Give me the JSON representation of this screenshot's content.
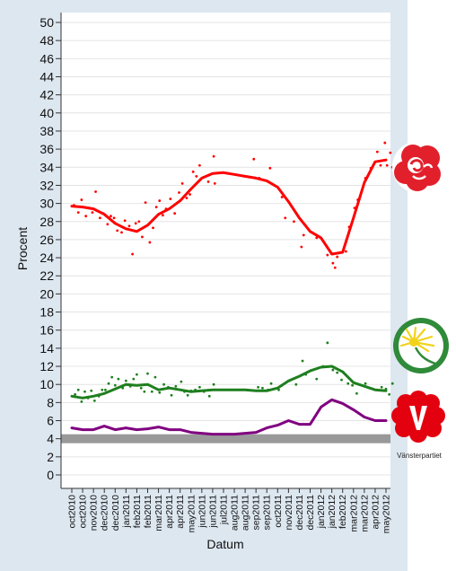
{
  "chart_data": {
    "type": "line",
    "xlabel": "Datum",
    "ylabel": "Procent",
    "ylim": [
      0,
      51
    ],
    "yticks": [
      0,
      2,
      4,
      6,
      8,
      10,
      12,
      14,
      16,
      18,
      20,
      22,
      24,
      26,
      28,
      30,
      32,
      34,
      36,
      38,
      40,
      42,
      44,
      46,
      48,
      50
    ],
    "x_categories": [
      "oct2010",
      "oct2010",
      "nov2010",
      "dec2010",
      "dec2010",
      "jan2011",
      "feb2011",
      "feb2011",
      "mar2011",
      "apr2011",
      "apr2011",
      "may2011",
      "jun2011",
      "jun2011",
      "jul2011",
      "aug2011",
      "aug2011",
      "sep2011",
      "sep2011",
      "oct2011",
      "nov2011",
      "dec2011",
      "dec2011",
      "jan2012",
      "jan2012",
      "feb2012",
      "mar2012",
      "mar2012",
      "apr2012",
      "may2012"
    ],
    "threshold": {
      "value": 4
    },
    "grid": true,
    "background": "light-blue",
    "series": [
      {
        "color": "#ff0000",
        "smooth": [
          [
            0,
            29.7
          ],
          [
            1,
            29.6
          ],
          [
            2,
            29.4
          ],
          [
            3,
            28.8
          ],
          [
            4,
            27.8
          ],
          [
            5,
            27.2
          ],
          [
            6,
            26.9
          ],
          [
            7,
            27.6
          ],
          [
            8,
            28.8
          ],
          [
            9,
            29.4
          ],
          [
            10,
            30.3
          ],
          [
            11,
            31.6
          ],
          [
            12,
            32.8
          ],
          [
            13,
            33.3
          ],
          [
            14,
            33.4
          ],
          [
            15,
            33.2
          ],
          [
            16,
            33.0
          ],
          [
            17,
            32.8
          ],
          [
            18,
            32.5
          ],
          [
            19,
            31.8
          ],
          [
            20,
            30.2
          ],
          [
            21,
            28.4
          ],
          [
            22,
            26.9
          ],
          [
            23,
            26.2
          ],
          [
            24,
            24.4
          ],
          [
            25,
            24.6
          ],
          [
            26,
            28.4
          ],
          [
            27,
            32.3
          ],
          [
            28,
            34.6
          ],
          [
            29,
            34.8
          ]
        ],
        "points": [
          [
            0.2,
            29.8
          ],
          [
            0.6,
            29.0
          ],
          [
            0.9,
            30.4
          ],
          [
            1.3,
            28.6
          ],
          [
            1.6,
            29.5
          ],
          [
            1.9,
            29.0
          ],
          [
            2.2,
            31.3
          ],
          [
            2.6,
            28.4
          ],
          [
            2.9,
            28.9
          ],
          [
            3.3,
            27.7
          ],
          [
            3.6,
            28.6
          ],
          [
            3.9,
            28.4
          ],
          [
            4.2,
            27.0
          ],
          [
            4.6,
            26.8
          ],
          [
            4.9,
            28.1
          ],
          [
            5.3,
            27.5
          ],
          [
            5.6,
            24.4
          ],
          [
            5.9,
            27.8
          ],
          [
            6.2,
            28.0
          ],
          [
            6.5,
            26.3
          ],
          [
            6.8,
            30.1
          ],
          [
            7.2,
            25.7
          ],
          [
            7.5,
            27.3
          ],
          [
            7.8,
            29.6
          ],
          [
            8.1,
            30.3
          ],
          [
            8.4,
            28.7
          ],
          [
            8.7,
            29.4
          ],
          [
            9.1,
            30.5
          ],
          [
            9.5,
            28.9
          ],
          [
            9.9,
            31.2
          ],
          [
            10.2,
            32.2
          ],
          [
            10.6,
            30.6
          ],
          [
            10.9,
            31.0
          ],
          [
            11.2,
            33.5
          ],
          [
            11.5,
            33.0
          ],
          [
            11.8,
            34.2
          ],
          [
            12.6,
            32.4
          ],
          [
            13.1,
            35.2
          ],
          [
            13.2,
            32.2
          ],
          [
            16.8,
            34.9
          ],
          [
            17.3,
            32.8
          ],
          [
            18.3,
            33.9
          ],
          [
            18.7,
            32.0
          ],
          [
            19.4,
            30.7
          ],
          [
            19.7,
            28.4
          ],
          [
            20.5,
            28.0
          ],
          [
            21.2,
            25.2
          ],
          [
            21.4,
            26.5
          ],
          [
            22.6,
            26.2
          ],
          [
            23.6,
            24.3
          ],
          [
            24.1,
            23.4
          ],
          [
            24.3,
            22.9
          ],
          [
            24.5,
            24.1
          ],
          [
            25.3,
            24.7
          ],
          [
            25.6,
            27.4
          ],
          [
            26.1,
            29.5
          ],
          [
            26.4,
            30.4
          ],
          [
            27.1,
            32.8
          ],
          [
            27.6,
            33.9
          ],
          [
            28.2,
            35.7
          ],
          [
            28.5,
            34.2
          ],
          [
            28.9,
            36.7
          ],
          [
            29.1,
            34.2
          ],
          [
            29.4,
            35.6
          ],
          [
            29.6,
            34.0
          ]
        ]
      },
      {
        "color": "#1e7f1e",
        "smooth": [
          [
            0,
            8.7
          ],
          [
            1,
            8.5
          ],
          [
            2,
            8.7
          ],
          [
            3,
            9.0
          ],
          [
            4,
            9.5
          ],
          [
            5,
            10.0
          ],
          [
            6,
            9.9
          ],
          [
            7,
            10.0
          ],
          [
            8,
            9.4
          ],
          [
            9,
            9.6
          ],
          [
            10,
            9.4
          ],
          [
            11,
            9.2
          ],
          [
            12,
            9.3
          ],
          [
            13,
            9.4
          ],
          [
            14,
            9.4
          ],
          [
            15,
            9.4
          ],
          [
            16,
            9.4
          ],
          [
            17,
            9.3
          ],
          [
            18,
            9.3
          ],
          [
            19,
            9.6
          ],
          [
            20,
            10.4
          ],
          [
            21,
            10.9
          ],
          [
            22,
            11.5
          ],
          [
            23,
            11.9
          ],
          [
            24,
            12.0
          ],
          [
            25,
            11.4
          ],
          [
            26,
            10.2
          ],
          [
            27,
            9.8
          ],
          [
            28,
            9.4
          ],
          [
            29,
            9.3
          ]
        ],
        "points": [
          [
            0.3,
            8.9
          ],
          [
            0.6,
            9.4
          ],
          [
            0.9,
            8.1
          ],
          [
            1.2,
            9.2
          ],
          [
            1.5,
            8.5
          ],
          [
            1.8,
            9.3
          ],
          [
            2.1,
            8.2
          ],
          [
            2.5,
            8.7
          ],
          [
            2.8,
            9.4
          ],
          [
            3.1,
            9.4
          ],
          [
            3.4,
            10.1
          ],
          [
            3.7,
            10.8
          ],
          [
            4.0,
            9.9
          ],
          [
            4.3,
            10.6
          ],
          [
            4.7,
            9.6
          ],
          [
            5.0,
            10.4
          ],
          [
            5.4,
            9.8
          ],
          [
            5.7,
            10.6
          ],
          [
            6.0,
            11.1
          ],
          [
            6.4,
            9.6
          ],
          [
            6.7,
            9.2
          ],
          [
            7.0,
            11.2
          ],
          [
            7.4,
            9.2
          ],
          [
            7.7,
            10.8
          ],
          [
            8.1,
            9.1
          ],
          [
            8.5,
            10.0
          ],
          [
            8.9,
            9.7
          ],
          [
            9.2,
            8.8
          ],
          [
            9.6,
            9.8
          ],
          [
            10.1,
            10.3
          ],
          [
            10.4,
            9.2
          ],
          [
            10.7,
            8.8
          ],
          [
            11.0,
            9.3
          ],
          [
            11.4,
            9.4
          ],
          [
            11.8,
            9.7
          ],
          [
            12.2,
            9.2
          ],
          [
            12.7,
            8.7
          ],
          [
            13.1,
            10.0
          ],
          [
            17.2,
            9.7
          ],
          [
            17.6,
            9.6
          ],
          [
            18.1,
            9.4
          ],
          [
            18.4,
            10.1
          ],
          [
            19.1,
            9.4
          ],
          [
            19.4,
            9.9
          ],
          [
            20.1,
            10.4
          ],
          [
            20.7,
            10.0
          ],
          [
            21.3,
            12.6
          ],
          [
            21.6,
            11.1
          ],
          [
            22.6,
            10.6
          ],
          [
            23.2,
            12.0
          ],
          [
            23.6,
            14.6
          ],
          [
            24.1,
            11.6
          ],
          [
            24.5,
            11.3
          ],
          [
            24.9,
            10.5
          ],
          [
            25.5,
            10.1
          ],
          [
            25.9,
            9.9
          ],
          [
            26.3,
            9.0
          ],
          [
            27.1,
            10.1
          ],
          [
            27.5,
            9.6
          ],
          [
            28.2,
            9.4
          ],
          [
            28.6,
            9.7
          ],
          [
            29.0,
            9.5
          ],
          [
            29.3,
            8.9
          ],
          [
            29.6,
            10.1
          ]
        ]
      },
      {
        "color": "#800080",
        "smooth": [
          [
            0,
            5.2
          ],
          [
            1,
            5.0
          ],
          [
            2,
            5.0
          ],
          [
            3,
            5.4
          ],
          [
            4,
            5.0
          ],
          [
            5,
            5.2
          ],
          [
            6,
            5.0
          ],
          [
            7,
            5.1
          ],
          [
            8,
            5.3
          ],
          [
            9,
            5.0
          ],
          [
            10,
            5.0
          ],
          [
            11,
            4.7
          ],
          [
            12,
            4.6
          ],
          [
            13,
            4.5
          ],
          [
            14,
            4.5
          ],
          [
            15,
            4.5
          ],
          [
            16,
            4.6
          ],
          [
            17,
            4.7
          ],
          [
            18,
            5.2
          ],
          [
            19,
            5.5
          ],
          [
            20,
            6.0
          ],
          [
            21,
            5.6
          ],
          [
            22,
            5.6
          ],
          [
            23,
            7.5
          ],
          [
            24,
            8.3
          ],
          [
            25,
            7.9
          ],
          [
            26,
            7.2
          ],
          [
            27,
            6.4
          ],
          [
            28,
            6.0
          ],
          [
            29,
            6.0
          ]
        ],
        "points": []
      }
    ]
  },
  "logos": {
    "logo3_caption": "Vänsterpartiet"
  }
}
